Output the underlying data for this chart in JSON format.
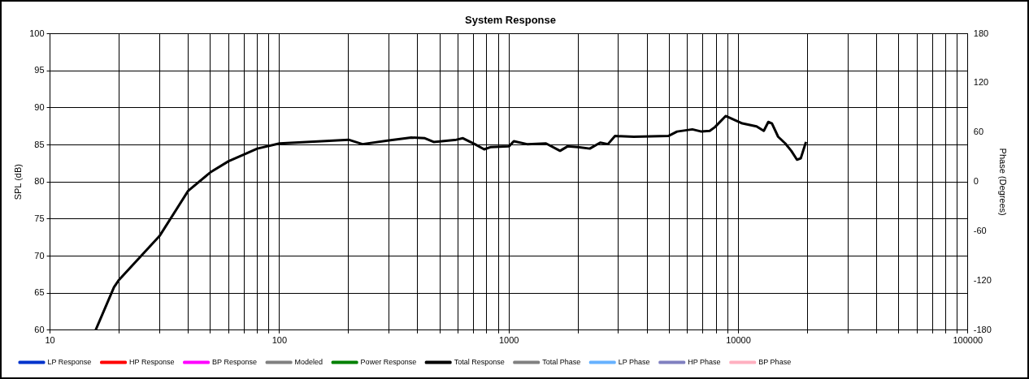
{
  "chart_data": {
    "type": "line",
    "title": "System Response",
    "ylabel": "SPL (dB)",
    "y2label": "Phase (Degrees)",
    "log": "x",
    "grid": true,
    "legend": "bottom",
    "xlim": [
      10,
      100000
    ],
    "xticks": [
      10,
      {
        "value": 20,
        "label": null
      },
      {
        "value": 30,
        "label": null
      },
      {
        "value": 40,
        "label": null
      },
      {
        "value": 50,
        "label": null
      },
      {
        "value": 60,
        "label": null
      },
      {
        "value": 70,
        "label": null
      },
      {
        "value": 80,
        "label": null
      },
      {
        "value": 90,
        "label": null
      },
      100,
      {
        "value": 200,
        "label": null
      },
      {
        "value": 300,
        "label": null
      },
      {
        "value": 400,
        "label": null
      },
      {
        "value": 500,
        "label": null
      },
      {
        "value": 600,
        "label": null
      },
      {
        "value": 700,
        "label": null
      },
      {
        "value": 800,
        "label": null
      },
      {
        "value": 900,
        "label": null
      },
      1000,
      {
        "value": 2000,
        "label": null
      },
      {
        "value": 3000,
        "label": null
      },
      {
        "value": 4000,
        "label": null
      },
      {
        "value": 5000,
        "label": null
      },
      {
        "value": 6000,
        "label": null
      },
      {
        "value": 7000,
        "label": null
      },
      {
        "value": 8000,
        "label": null
      },
      {
        "value": 9000,
        "label": null
      },
      10000,
      {
        "value": 20000,
        "label": null
      },
      {
        "value": 30000,
        "label": null
      },
      {
        "value": 40000,
        "label": null
      },
      {
        "value": 50000,
        "label": null
      },
      {
        "value": 60000,
        "label": null
      },
      {
        "value": 70000,
        "label": null
      },
      {
        "value": 80000,
        "label": null
      },
      {
        "value": 90000,
        "label": null
      },
      100000
    ],
    "ylim": [
      60,
      100
    ],
    "yticks": [
      60,
      65,
      70,
      75,
      80,
      85,
      90,
      95,
      100
    ],
    "y2lim": [
      -180,
      180
    ],
    "y2ticks": [
      -180,
      -120,
      -60,
      0,
      60,
      120,
      180
    ],
    "series": [
      {
        "name": "LP Response",
        "color": "#0033cc"
      },
      {
        "name": "HP Response",
        "color": "#ff0000"
      },
      {
        "name": "BP Response",
        "color": "#ff00ff"
      },
      {
        "name": "Modeled",
        "color": "#808080"
      },
      {
        "name": "Power Response",
        "color": "#008000"
      },
      {
        "name": "Total Response",
        "color": "#000000",
        "x": [
          15.8,
          19,
          20,
          30,
          40,
          50,
          60,
          70,
          80,
          100,
          200,
          230,
          300,
          375,
          430,
          470,
          590,
          630,
          710,
          780,
          830,
          1000,
          1050,
          1200,
          1450,
          1670,
          1800,
          2000,
          2250,
          2500,
          2700,
          2900,
          3500,
          4950,
          5400,
          6300,
          6900,
          7500,
          7900,
          8800,
          10400,
          12000,
          12900,
          13500,
          14000,
          14900,
          16000,
          17000,
          18000,
          18700,
          19700
        ],
        "values": [
          60,
          65.8,
          66.8,
          72.7,
          78.8,
          81.3,
          82.8,
          83.7,
          84.5,
          85.2,
          85.7,
          85.1,
          85.6,
          86.0,
          85.9,
          85.4,
          85.7,
          85.9,
          85.1,
          84.4,
          84.7,
          84.8,
          85.5,
          85.1,
          85.2,
          84.2,
          84.8,
          84.7,
          84.5,
          85.3,
          85.1,
          86.2,
          86.1,
          86.2,
          86.8,
          87.1,
          86.8,
          86.9,
          87.4,
          88.9,
          87.9,
          87.5,
          86.9,
          88.1,
          87.9,
          86.1,
          85.2,
          84.2,
          83.0,
          83.2,
          85.4
        ]
      },
      {
        "name": "Total Phase",
        "color": "#808080"
      },
      {
        "name": "LP Phase",
        "color": "#66b2ff"
      },
      {
        "name": "HP Phase",
        "color": "#8080c0"
      },
      {
        "name": "BP Phase",
        "color": "#ffb0c0"
      }
    ]
  }
}
